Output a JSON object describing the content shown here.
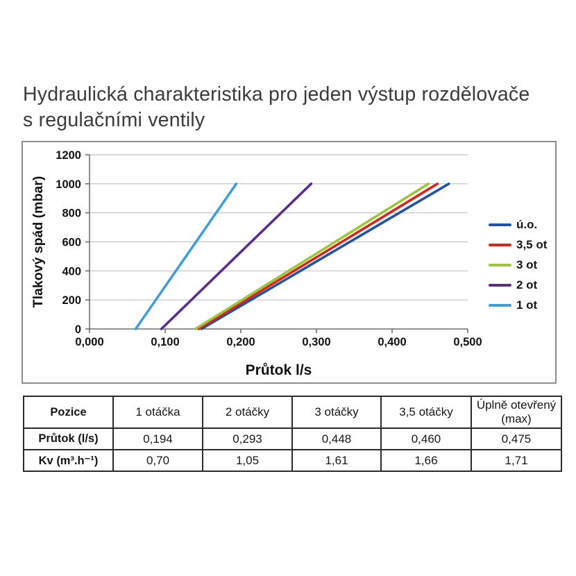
{
  "title": {
    "line1": "Hydraulická charakteristika pro jeden výstup rozdělovače",
    "line2": "s regulačními ventily"
  },
  "chart_data": {
    "type": "line",
    "xlabel": "Průtok l/s",
    "ylabel": "Tlakový spád (mbar)",
    "xlim": [
      0,
      0.5
    ],
    "ylim": [
      0,
      1200
    ],
    "x_tick_labels": [
      "0,000",
      "0,100",
      "0,200",
      "0,300",
      "0,400",
      "0,500"
    ],
    "x_tick_values": [
      0,
      0.1,
      0.2,
      0.3,
      0.4,
      0.5
    ],
    "y_tick_labels": [
      "0",
      "200",
      "400",
      "600",
      "800",
      "1000",
      "1200"
    ],
    "y_tick_values": [
      0,
      200,
      400,
      600,
      800,
      1000,
      1200
    ],
    "grid": "horizontal",
    "legend_position": "right",
    "series": [
      {
        "name": "ú.o.",
        "color": "#2153a3",
        "points": [
          [
            0.148,
            0
          ],
          [
            0.475,
            1000
          ]
        ]
      },
      {
        "name": "3,5 ot",
        "color": "#da2418",
        "points": [
          [
            0.144,
            0
          ],
          [
            0.46,
            1000
          ]
        ]
      },
      {
        "name": "3 ot",
        "color": "#9dc53c",
        "points": [
          [
            0.14,
            0
          ],
          [
            0.448,
            1000
          ]
        ]
      },
      {
        "name": "2 ot",
        "color": "#5b2c8c",
        "points": [
          [
            0.095,
            0
          ],
          [
            0.293,
            1000
          ]
        ]
      },
      {
        "name": "1 ot",
        "color": "#3f9fd8",
        "points": [
          [
            0.061,
            0
          ],
          [
            0.194,
            1000
          ]
        ]
      }
    ],
    "style": {
      "grid_color": "#c2c2c2",
      "axis_color": "#6e6e6e",
      "text_color": "#111111"
    }
  },
  "table": {
    "header": [
      "Pozice",
      "1 otáčka",
      "2 otáčky",
      "3 otáčky",
      "3,5 otáčky",
      "Úplně otevřený (max)"
    ],
    "rows": [
      {
        "label": "Průtok (l/s)",
        "values": [
          "0,194",
          "0,293",
          "0,448",
          "0,460",
          "0,475"
        ]
      },
      {
        "label": "Kv (m³.h⁻¹)",
        "values": [
          "0,70",
          "1,05",
          "1,61",
          "1,66",
          "1,71"
        ]
      }
    ]
  }
}
